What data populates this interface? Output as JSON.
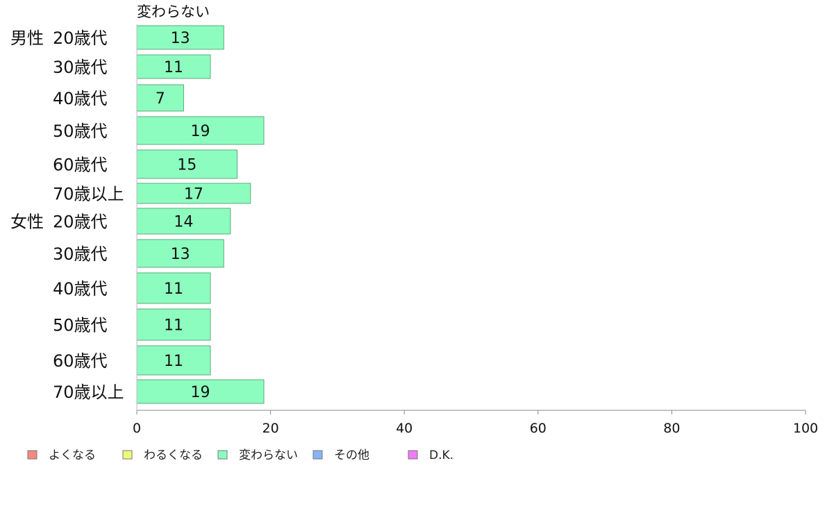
{
  "chart_data": {
    "type": "bar",
    "orientation": "horizontal",
    "stacked": true,
    "series_header": "変わらない",
    "groups": [
      {
        "label": "男性",
        "categories": [
          "20歳代",
          "30歳代",
          "40歳代",
          "50歳代",
          "60歳代",
          "70歳以上"
        ]
      },
      {
        "label": "女性",
        "categories": [
          "20歳代",
          "30歳代",
          "40歳代",
          "50歳代",
          "60歳代",
          "70歳以上"
        ]
      }
    ],
    "series": [
      {
        "name": "よくなる",
        "color": "#f28a82",
        "values": [
          0,
          0,
          0,
          0,
          0,
          0,
          0,
          0,
          0,
          0,
          0,
          0
        ]
      },
      {
        "name": "わるくなる",
        "color": "#eef97a",
        "values": [
          0,
          0,
          0,
          0,
          0,
          0,
          0,
          0,
          0,
          0,
          0,
          0
        ]
      },
      {
        "name": "変わらない",
        "color": "#8dfdbf",
        "values": [
          13,
          11,
          7,
          19,
          15,
          17,
          14,
          13,
          11,
          11,
          11,
          19
        ]
      },
      {
        "name": "その他",
        "color": "#86b5f5",
        "values": [
          0,
          0,
          0,
          0,
          0,
          0,
          0,
          0,
          0,
          0,
          0,
          0
        ]
      },
      {
        "name": "D.K.",
        "color": "#ec7df4",
        "values": [
          0,
          0,
          0,
          0,
          0,
          0,
          0,
          0,
          0,
          0,
          0,
          0
        ]
      }
    ],
    "xlim": [
      0,
      100
    ],
    "xticks": [
      0,
      20,
      40,
      60,
      80,
      100
    ],
    "legend_position": "bottom-left",
    "grid": false
  }
}
